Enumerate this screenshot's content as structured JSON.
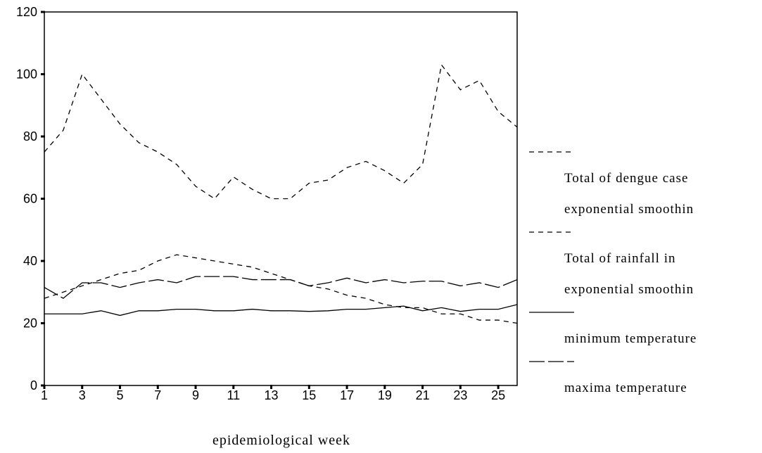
{
  "chart_data": {
    "type": "line",
    "x_label": "epidemiological week",
    "x": [
      1,
      2,
      3,
      4,
      5,
      6,
      7,
      8,
      9,
      10,
      11,
      12,
      13,
      14,
      15,
      16,
      17,
      18,
      19,
      20,
      21,
      22,
      23,
      24,
      25,
      26
    ],
    "xlim": [
      1,
      26
    ],
    "xticks": [
      1,
      3,
      5,
      7,
      9,
      11,
      13,
      15,
      17,
      19,
      21,
      23,
      25
    ],
    "ylim": [
      0,
      120
    ],
    "yticks": [
      0,
      20,
      40,
      60,
      80,
      100,
      120
    ],
    "series": [
      {
        "name": "Total of dengue case exponential smoothin",
        "color": "#000000",
        "dash": "7 6",
        "values": [
          75,
          82,
          100,
          92,
          84,
          78,
          75,
          71,
          64,
          60,
          67,
          63,
          60,
          60,
          65,
          66,
          70,
          72,
          69,
          65,
          71,
          103,
          95,
          98,
          88,
          83
        ]
      },
      {
        "name": "Total of rainfall in exponential smoothin",
        "color": "#000000",
        "dash": "7 6",
        "values": [
          28,
          30,
          32,
          34,
          36,
          37,
          40,
          42,
          41,
          40,
          39,
          38,
          36,
          34,
          32,
          31,
          29,
          28,
          26,
          25,
          25,
          23,
          23,
          21,
          21,
          20
        ]
      },
      {
        "name": "minimum temperature",
        "color": "#000000",
        "dash": "none",
        "values": [
          23,
          23,
          23,
          24,
          22.5,
          24,
          24,
          24.5,
          24.5,
          24,
          24,
          24.5,
          24,
          24,
          23.8,
          24,
          24.5,
          24.5,
          25,
          25.5,
          24,
          25,
          23.8,
          24.5,
          24.5,
          26
        ]
      },
      {
        "name": "maxima temperature",
        "color": "#000000",
        "dash": "22 5",
        "values": [
          31.5,
          28,
          33,
          33,
          31.5,
          33,
          34,
          33,
          35,
          35,
          35,
          34,
          34,
          34,
          32,
          33,
          34.5,
          33,
          34,
          33,
          33.5,
          33.5,
          32,
          33,
          31.5,
          34
        ]
      }
    ]
  }
}
